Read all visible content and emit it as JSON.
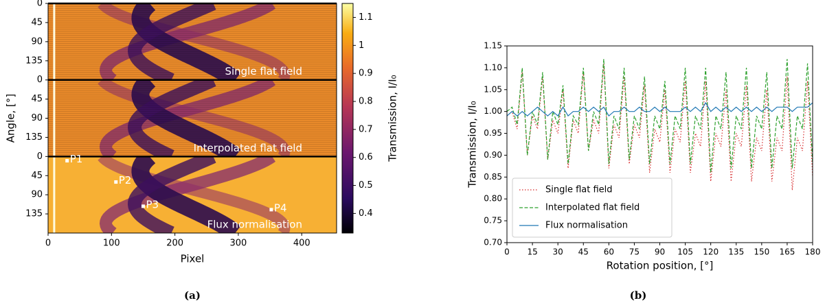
{
  "chart_data": [
    {
      "type": "heatmap",
      "caption": "(a)",
      "xlabel": "Pixel",
      "ylabel": "Angle, [°]",
      "xlim": [
        0,
        455
      ],
      "xticks": [
        0,
        100,
        200,
        300,
        400
      ],
      "panels": [
        {
          "label": "Single flat field",
          "ylim": [
            0,
            180
          ],
          "yticks": [
            0,
            45,
            90,
            135
          ]
        },
        {
          "label": "Interpolated flat field",
          "ylim": [
            0,
            180
          ],
          "yticks": [
            0,
            45,
            90,
            135
          ]
        },
        {
          "label": "Flux normalisation",
          "ylim": [
            0,
            180
          ],
          "yticks": [
            0,
            45,
            90,
            135
          ],
          "points": [
            {
              "label": "P1",
              "x": 30,
              "y": 10
            },
            {
              "label": "P2",
              "x": 107,
              "y": 60
            },
            {
              "label": "P3",
              "x": 150,
              "y": 117
            },
            {
              "label": "P4",
              "x": 352,
              "y": 125
            }
          ]
        }
      ],
      "colorbar": {
        "label": "Transmission, I/I₀",
        "clim": [
          0.33,
          1.15
        ],
        "ticks": [
          0.4,
          0.5,
          0.6,
          0.7,
          0.8,
          0.9,
          1.0,
          1.1
        ]
      }
    },
    {
      "type": "line",
      "caption": "(b)",
      "xlabel": "Rotation position, [°]",
      "ylabel": "Transmission, I/I₀",
      "xlim": [
        0,
        180
      ],
      "xticks": [
        0,
        15,
        30,
        45,
        60,
        75,
        90,
        105,
        120,
        135,
        150,
        165,
        180
      ],
      "ylim": [
        0.7,
        1.15
      ],
      "yticks": [
        {
          "value": 0.7,
          "label": "0.70"
        },
        {
          "value": 0.75,
          "label": "0.75"
        },
        {
          "value": 0.8,
          "label": "0.80"
        },
        {
          "value": 0.85,
          "label": "0.85"
        },
        {
          "value": 0.9,
          "label": "0.90"
        },
        {
          "value": 0.95,
          "label": "0.95"
        },
        {
          "value": 1.0,
          "label": "1.00"
        },
        {
          "value": 1.05,
          "label": "1.05"
        },
        {
          "value": 1.1,
          "label": "1.10"
        },
        {
          "value": 1.15,
          "label": "1.15"
        }
      ],
      "legend": "lower left",
      "x": [
        0,
        3,
        6,
        9,
        12,
        15,
        18,
        21,
        24,
        27,
        30,
        33,
        36,
        39,
        42,
        45,
        48,
        51,
        54,
        57,
        60,
        63,
        66,
        69,
        72,
        75,
        78,
        81,
        84,
        87,
        90,
        93,
        96,
        99,
        102,
        105,
        108,
        111,
        114,
        117,
        120,
        123,
        126,
        129,
        132,
        135,
        138,
        141,
        144,
        147,
        150,
        153,
        156,
        159,
        162,
        165,
        168,
        171,
        174,
        177,
        180
      ],
      "series": [
        {
          "name": "Single flat field",
          "color": "#d62728",
          "style": "dotted",
          "values": [
            0.99,
            1.0,
            0.96,
            1.09,
            0.9,
            0.99,
            0.96,
            1.08,
            0.89,
            0.98,
            0.95,
            1.05,
            0.87,
            0.98,
            0.95,
            1.09,
            0.91,
            0.98,
            0.95,
            1.11,
            0.87,
            0.97,
            0.94,
            1.08,
            0.88,
            0.97,
            0.94,
            1.06,
            0.86,
            0.96,
            0.93,
            1.05,
            0.86,
            0.96,
            0.93,
            1.07,
            0.86,
            0.95,
            0.92,
            1.07,
            0.84,
            0.95,
            0.92,
            1.05,
            0.84,
            0.95,
            0.92,
            1.06,
            0.84,
            0.94,
            0.91,
            1.05,
            0.84,
            0.94,
            0.91,
            1.08,
            0.82,
            0.94,
            0.91,
            1.07,
            0.85
          ]
        },
        {
          "name": "Interpolated flat field",
          "color": "#2ca02c",
          "style": "dashed",
          "values": [
            1.0,
            1.01,
            0.97,
            1.1,
            0.9,
            1.0,
            0.97,
            1.09,
            0.89,
            1.0,
            0.97,
            1.06,
            0.88,
            0.99,
            0.97,
            1.1,
            0.91,
            1.0,
            0.97,
            1.12,
            0.88,
            0.99,
            0.96,
            1.1,
            0.89,
            0.99,
            0.96,
            1.08,
            0.88,
            0.99,
            0.96,
            1.07,
            0.88,
            0.99,
            0.96,
            1.1,
            0.88,
            0.99,
            0.96,
            1.1,
            0.86,
            0.99,
            0.96,
            1.09,
            0.87,
            0.99,
            0.96,
            1.1,
            0.87,
            0.99,
            0.96,
            1.09,
            0.87,
            0.99,
            0.96,
            1.12,
            0.87,
            0.99,
            0.96,
            1.11,
            0.88
          ]
        },
        {
          "name": "Flux normalisation",
          "color": "#1f77b4",
          "style": "solid",
          "values": [
            0.99,
            1.0,
            0.99,
            1.0,
            0.99,
            1.0,
            1.01,
            1.0,
            0.99,
            1.0,
            0.99,
            1.01,
            0.99,
            1.0,
            1.0,
            1.01,
            1.0,
            1.01,
            1.0,
            1.01,
            0.99,
            1.0,
            1.0,
            1.01,
            1.0,
            1.0,
            1.01,
            1.0,
            1.0,
            1.01,
            1.0,
            1.01,
            1.0,
            1.0,
            1.0,
            1.01,
            1.0,
            1.01,
            1.0,
            1.02,
            1.0,
            1.01,
            1.0,
            1.01,
            1.0,
            1.01,
            1.0,
            1.01,
            1.0,
            1.01,
            1.0,
            1.01,
            1.0,
            1.01,
            1.01,
            1.01,
            1.0,
            1.01,
            1.01,
            1.01,
            1.02
          ]
        }
      ]
    }
  ]
}
